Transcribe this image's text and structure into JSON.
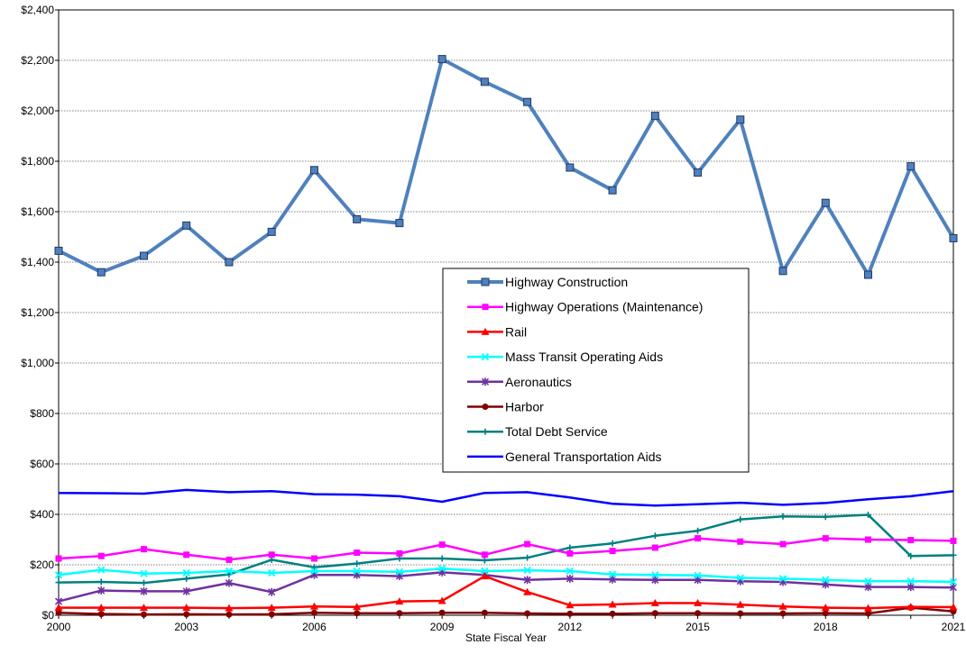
{
  "chart_data": {
    "type": "line",
    "title": "",
    "xlabel": "State Fiscal Year",
    "ylabel": "",
    "x": [
      2000,
      2001,
      2002,
      2003,
      2004,
      2005,
      2006,
      2007,
      2008,
      2009,
      2010,
      2011,
      2012,
      2013,
      2014,
      2015,
      2016,
      2017,
      2018,
      2019,
      2020,
      2021
    ],
    "xticks": [
      2000,
      2003,
      2006,
      2009,
      2012,
      2015,
      2018,
      2021
    ],
    "ylim": [
      0,
      2400
    ],
    "yticks": [
      0,
      200,
      400,
      600,
      800,
      1000,
      1200,
      1400,
      1600,
      1800,
      2000,
      2200,
      2400
    ],
    "ytick_labels": [
      "$0",
      "$200",
      "$400",
      "$600",
      "$800",
      "$1,000",
      "$1,200",
      "$1,400",
      "$1,600",
      "$1,800",
      "$2,000",
      "$2,200",
      "$2,400"
    ],
    "grid": "horizontal dotted",
    "legend_position": "center",
    "series": [
      {
        "name": "Highway Construction",
        "color": "#4f81bd",
        "marker": "square",
        "values": [
          1445,
          1360,
          1425,
          1545,
          1400,
          1520,
          1765,
          1570,
          1555,
          2205,
          2115,
          2035,
          1775,
          1685,
          1980,
          1755,
          1965,
          1365,
          1635,
          1350,
          1780,
          1495
        ]
      },
      {
        "name": "Highway Operations (Maintenance)",
        "color": "#ff00ff",
        "marker": "square",
        "values": [
          225,
          235,
          262,
          240,
          220,
          240,
          225,
          248,
          245,
          280,
          240,
          282,
          245,
          255,
          268,
          305,
          292,
          282,
          305,
          300,
          298,
          295
        ]
      },
      {
        "name": "Rail",
        "color": "#ff0000",
        "marker": "triangle",
        "values": [
          30,
          30,
          30,
          30,
          28,
          30,
          35,
          33,
          55,
          57,
          155,
          92,
          40,
          43,
          48,
          48,
          42,
          35,
          30,
          28,
          33,
          32
        ]
      },
      {
        "name": "Mass Transit Operating Aids",
        "color": "#00ffff",
        "marker": "x",
        "values": [
          160,
          180,
          165,
          168,
          175,
          168,
          175,
          175,
          172,
          185,
          175,
          178,
          175,
          162,
          160,
          158,
          148,
          145,
          140,
          135,
          135,
          132
        ]
      },
      {
        "name": "Aeronautics",
        "color": "#7030a0",
        "marker": "asterisk",
        "values": [
          55,
          98,
          95,
          95,
          128,
          92,
          160,
          160,
          155,
          170,
          160,
          140,
          145,
          142,
          140,
          140,
          135,
          132,
          122,
          112,
          112,
          110
        ]
      },
      {
        "name": "Harbor",
        "color": "#800000",
        "marker": "circle",
        "values": [
          10,
          5,
          3,
          4,
          3,
          4,
          10,
          8,
          8,
          10,
          10,
          7,
          6,
          6,
          8,
          8,
          7,
          7,
          8,
          7,
          30,
          15
        ]
      },
      {
        "name": "Total Debt Service",
        "color": "#008080",
        "marker": "plus",
        "values": [
          130,
          132,
          128,
          145,
          162,
          220,
          190,
          205,
          225,
          225,
          218,
          228,
          268,
          285,
          315,
          335,
          380,
          392,
          390,
          398,
          235,
          238
        ]
      },
      {
        "name": "General Transportation Aids",
        "color": "#0000ff",
        "marker": "none",
        "values": [
          485,
          484,
          482,
          497,
          488,
          492,
          480,
          478,
          472,
          450,
          485,
          488,
          467,
          442,
          435,
          440,
          446,
          438,
          445,
          460,
          472,
          492
        ]
      }
    ]
  }
}
